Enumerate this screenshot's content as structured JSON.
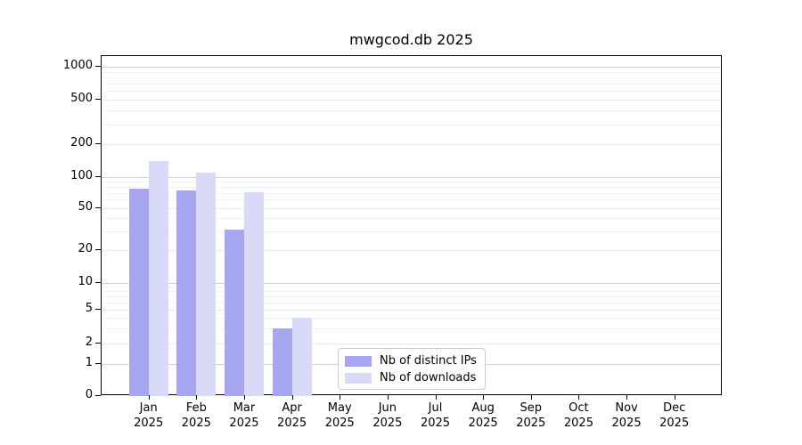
{
  "chart_data": {
    "type": "bar",
    "title": "mwgcod.db 2025",
    "categories": [
      "Jan",
      "Feb",
      "Mar",
      "Apr",
      "May",
      "Jun",
      "Jul",
      "Aug",
      "Sep",
      "Oct",
      "Nov",
      "Dec"
    ],
    "year_label": "2025",
    "series": [
      {
        "name": "Nb of distinct IPs",
        "color": "#a6a6f1",
        "values": [
          77,
          74,
          31,
          3,
          0,
          0,
          0,
          0,
          0,
          0,
          0,
          0
        ]
      },
      {
        "name": "Nb of downloads",
        "color": "#d9d9f8",
        "values": [
          140,
          110,
          71,
          4,
          0,
          0,
          0,
          0,
          0,
          0,
          0,
          0
        ]
      }
    ],
    "y_ticks": [
      0,
      1,
      2,
      5,
      10,
      20,
      50,
      100,
      200,
      500,
      1000
    ],
    "y_minor_ticks": [
      3,
      4,
      6,
      7,
      8,
      9,
      30,
      40,
      60,
      70,
      80,
      90,
      300,
      400,
      600,
      700,
      800,
      900
    ],
    "y_scale": "symlog",
    "ylim": [
      0,
      1250
    ],
    "grid": true,
    "legend_position": "lower center",
    "colors": {
      "distinct_ips": "#a6a6f1",
      "downloads": "#d9d9f8",
      "grid_major": "#d2d2d2",
      "grid_labeled": "#ebebeb",
      "grid_minor": "#f2f2f2",
      "spine": "#000000",
      "background": "#ffffff"
    }
  }
}
